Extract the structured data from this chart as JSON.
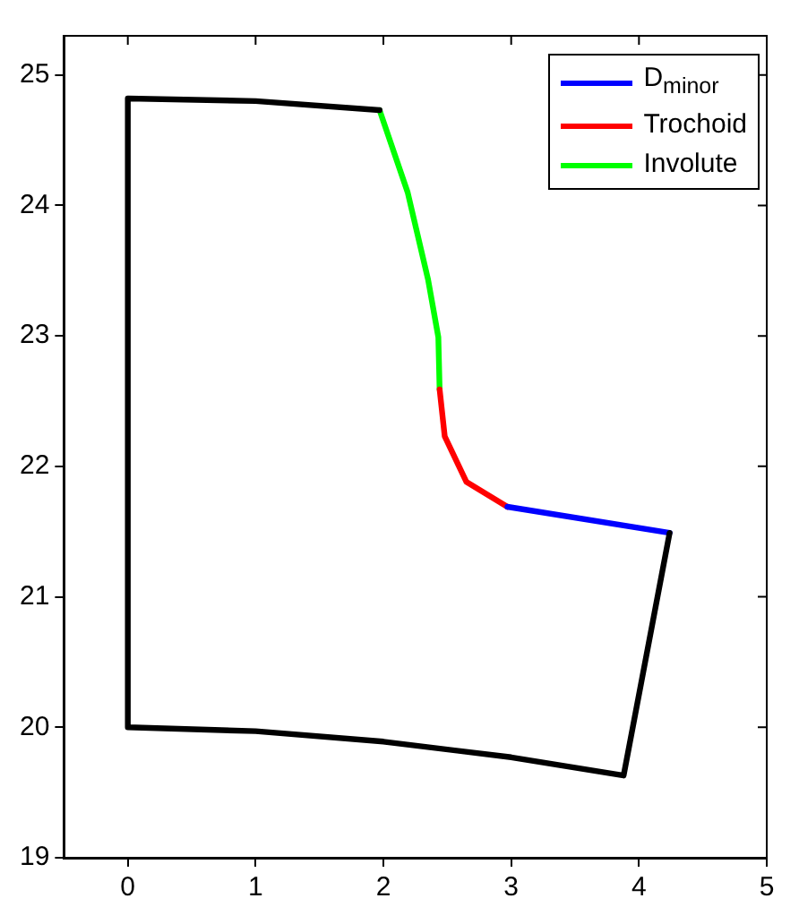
{
  "chart_data": {
    "type": "line",
    "xlim": [
      -0.5,
      5
    ],
    "xticks": [
      0,
      1,
      2,
      3,
      4,
      5
    ],
    "ylim": [
      19,
      25.3
    ],
    "yticks": [
      19,
      20,
      21,
      22,
      23,
      24,
      25
    ],
    "grid": false,
    "legend": "top right",
    "marker": "none",
    "line_style": "solid",
    "series": [
      {
        "color": "#000000",
        "x": [
          1.97,
          1,
          0,
          0,
          1,
          2,
          3,
          3.88,
          4.24
        ],
        "values": [
          24.73,
          24.8,
          24.82,
          20,
          19.97,
          19.89,
          19.77,
          19.63,
          21.49
        ]
      },
      {
        "name": "D$_{minor}$",
        "color": "#0000ff",
        "x": [
          2.97,
          4.24
        ],
        "values": [
          21.69,
          21.49
        ]
      },
      {
        "name": "Trochoid",
        "color": "#ff0000",
        "x": [
          2.44,
          2.48,
          2.65,
          2.97
        ],
        "values": [
          22.59,
          22.23,
          21.88,
          21.69
        ]
      },
      {
        "name": "Involute",
        "color": "#00ff00",
        "x": [
          1.97,
          2.19,
          2.35,
          2.43,
          2.44
        ],
        "values": [
          24.73,
          24.1,
          23.43,
          22.99,
          22.59
        ]
      }
    ]
  }
}
